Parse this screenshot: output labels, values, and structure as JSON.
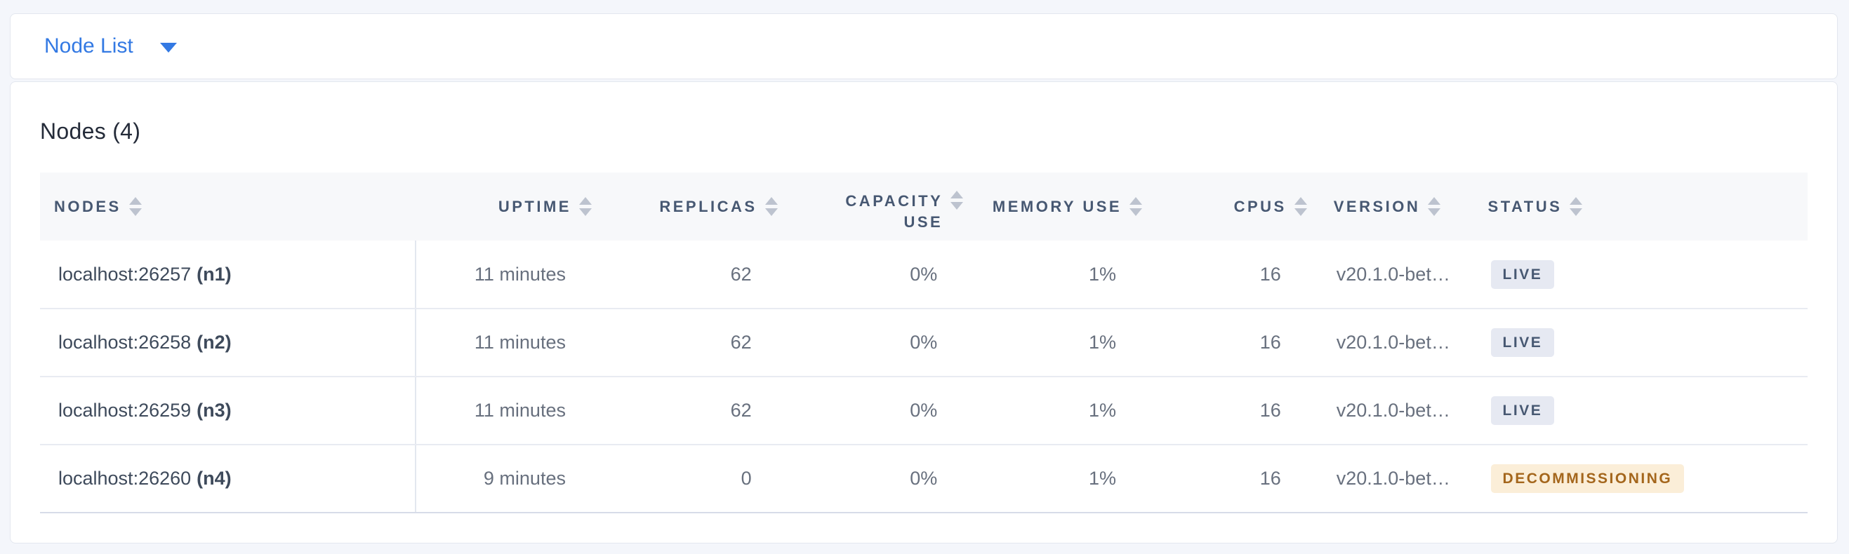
{
  "toolbar": {
    "view_selector": "Node List"
  },
  "main": {
    "title": "Nodes (4)"
  },
  "table": {
    "columns": [
      {
        "key": "nodes",
        "label": "NODES",
        "align": "left",
        "sortable": true
      },
      {
        "key": "uptime",
        "label": "UPTIME",
        "align": "right",
        "sortable": true
      },
      {
        "key": "replicas",
        "label": "REPLICAS",
        "align": "right",
        "sortable": true
      },
      {
        "key": "capacity_use",
        "label": "CAPACITY USE",
        "align": "right",
        "sortable": true,
        "wrap": true
      },
      {
        "key": "memory_use",
        "label": "MEMORY USE",
        "align": "right",
        "sortable": true
      },
      {
        "key": "cpus",
        "label": "CPUS",
        "align": "right",
        "sortable": true
      },
      {
        "key": "version",
        "label": "VERSION",
        "align": "left",
        "sortable": true
      },
      {
        "key": "status",
        "label": "STATUS",
        "align": "left",
        "sortable": true
      }
    ],
    "rows": [
      {
        "address": "localhost:26257",
        "node_id": "(n1)",
        "uptime": "11 minutes",
        "replicas": "62",
        "capacity_use": "0%",
        "memory_use": "1%",
        "cpus": "16",
        "version": "v20.1.0-bet…",
        "status": "LIVE",
        "status_type": "live"
      },
      {
        "address": "localhost:26258",
        "node_id": "(n2)",
        "uptime": "11 minutes",
        "replicas": "62",
        "capacity_use": "0%",
        "memory_use": "1%",
        "cpus": "16",
        "version": "v20.1.0-bet…",
        "status": "LIVE",
        "status_type": "live"
      },
      {
        "address": "localhost:26259",
        "node_id": "(n3)",
        "uptime": "11 minutes",
        "replicas": "62",
        "capacity_use": "0%",
        "memory_use": "1%",
        "cpus": "16",
        "version": "v20.1.0-bet…",
        "status": "LIVE",
        "status_type": "live"
      },
      {
        "address": "localhost:26260",
        "node_id": "(n4)",
        "uptime": "9 minutes",
        "replicas": "0",
        "capacity_use": "0%",
        "memory_use": "1%",
        "cpus": "16",
        "version": "v20.1.0-bet…",
        "status": "DECOMMISSIONING",
        "status_type": "decommissioning"
      }
    ]
  },
  "colors": {
    "accent_blue": "#3379e3",
    "status": {
      "live": {
        "bg": "#e6e9f2",
        "fg": "#475872"
      },
      "decommissioning": {
        "bg": "#fbeed8",
        "fg": "#a4661c"
      }
    }
  }
}
